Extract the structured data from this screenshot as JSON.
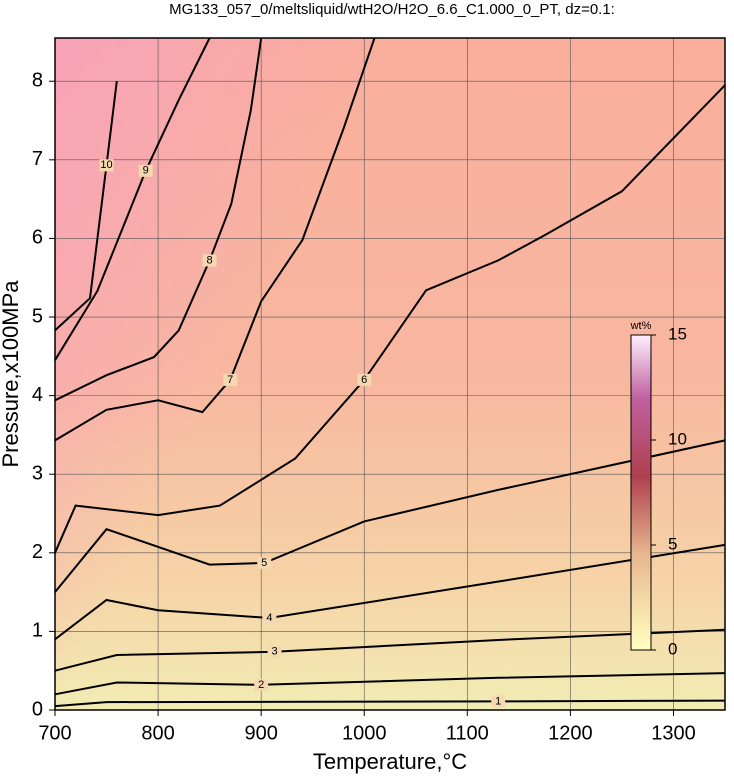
{
  "chart_data": {
    "type": "contour",
    "title": "MG133_057_0/meltsliquid/wtH2O/H2O_6.6_C1.000_0_PT, dz=0.1:",
    "x_label": "Temperature,°C",
    "y_label": "Pressure,x100MPa",
    "xlim": [
      700,
      1350
    ],
    "ylim": [
      0,
      8.55
    ],
    "xticks": [
      700,
      800,
      900,
      1000,
      1100,
      1200,
      1300
    ],
    "yticks": [
      0,
      1,
      2,
      3,
      4,
      5,
      6,
      7,
      8
    ],
    "grid": true,
    "series": [
      {
        "name": "1",
        "color": "#000000",
        "x": [
          700,
          750,
          1130,
          1350
        ],
        "values": [
          0.05,
          0.1,
          0.11,
          0.12
        ]
      },
      {
        "name": "2",
        "color": "#000000",
        "x": [
          700,
          760,
          900,
          1130,
          1350
        ],
        "values": [
          0.2,
          0.35,
          0.32,
          0.41,
          0.47
        ]
      },
      {
        "name": "3",
        "color": "#000000",
        "x": [
          700,
          760,
          913,
          1130,
          1350
        ],
        "values": [
          0.5,
          0.7,
          0.74,
          0.89,
          1.02
        ]
      },
      {
        "name": "4",
        "color": "#000000",
        "x": [
          700,
          750,
          800,
          908,
          1128,
          1350
        ],
        "values": [
          0.9,
          1.4,
          1.27,
          1.17,
          1.63,
          2.1
        ]
      },
      {
        "name": "5",
        "color": "#000000",
        "x": [
          700,
          750,
          850,
          903,
          1000,
          1130,
          1350
        ],
        "values": [
          1.5,
          2.3,
          1.85,
          1.87,
          2.4,
          2.8,
          3.43
        ]
      },
      {
        "name": "6",
        "color": "#000000",
        "x": [
          700,
          720,
          800,
          860,
          933,
          1000,
          1060,
          1130,
          1175,
          1250,
          1350
        ],
        "values": [
          2.0,
          2.6,
          2.48,
          2.6,
          3.2,
          4.2,
          5.34,
          5.72,
          6.04,
          6.6,
          7.95
        ]
      },
      {
        "name": "7",
        "color": "#000000",
        "x": [
          700,
          750,
          800,
          843,
          870,
          900,
          940,
          980,
          1010
        ],
        "values": [
          3.43,
          3.82,
          3.94,
          3.79,
          4.2,
          5.2,
          5.98,
          7.4,
          8.55
        ]
      },
      {
        "name": "8",
        "color": "#000000",
        "x": [
          700,
          750,
          796,
          820,
          850,
          871,
          890,
          900
        ],
        "values": [
          3.94,
          4.26,
          4.49,
          4.83,
          5.72,
          6.44,
          7.63,
          8.55
        ]
      },
      {
        "name": "9",
        "color": "#000000",
        "x": [
          700,
          741,
          788,
          820,
          850
        ],
        "values": [
          4.45,
          5.33,
          6.86,
          7.76,
          8.55
        ]
      },
      {
        "name": "10",
        "color": "#000000",
        "x": [
          700,
          734,
          750,
          760
        ],
        "values": [
          4.83,
          5.24,
          6.93,
          8.0
        ]
      }
    ],
    "colorbar": {
      "label": "wt%",
      "lim": [
        0,
        15
      ],
      "ticks": [
        0,
        5,
        10,
        15
      ]
    }
  }
}
